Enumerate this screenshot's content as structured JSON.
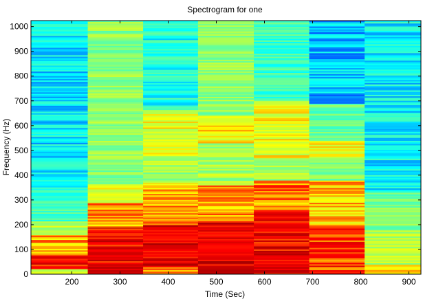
{
  "chart_data": {
    "type": "heatmap",
    "title": "Spectrogram for one",
    "xlabel": "Time (Sec)",
    "ylabel": "Frequency (Hz)",
    "xlim": [
      115,
      925
    ],
    "ylim": [
      0,
      1024
    ],
    "x_ticks": [
      200,
      300,
      400,
      500,
      600,
      700,
      800,
      900
    ],
    "y_ticks": [
      0,
      100,
      200,
      300,
      400,
      500,
      600,
      700,
      800,
      900,
      1000
    ],
    "grid": false,
    "legend": "none",
    "colormap": "jet",
    "colorscale_points": [
      "#00007f",
      "#0000ff",
      "#00ffff",
      "#80ff80",
      "#ffff00",
      "#ff0000",
      "#7f0000"
    ],
    "segments": [
      {
        "x_start": 115,
        "x_end": 233,
        "bands": [
          {
            "f_start": 0,
            "f_end": 22,
            "level": 0.62
          },
          {
            "f_start": 22,
            "f_end": 80,
            "level": 0.84
          },
          {
            "f_start": 80,
            "f_end": 160,
            "level": 0.72
          },
          {
            "f_start": 160,
            "f_end": 215,
            "level": 0.56
          },
          {
            "f_start": 215,
            "f_end": 340,
            "level": 0.42
          },
          {
            "f_start": 340,
            "f_end": 1024,
            "level": 0.34
          }
        ]
      },
      {
        "x_start": 233,
        "x_end": 348,
        "bands": [
          {
            "f_start": 0,
            "f_end": 190,
            "level": 0.85
          },
          {
            "f_start": 190,
            "f_end": 290,
            "level": 0.74
          },
          {
            "f_start": 290,
            "f_end": 360,
            "level": 0.65
          },
          {
            "f_start": 360,
            "f_end": 1024,
            "level": 0.52
          }
        ]
      },
      {
        "x_start": 348,
        "x_end": 462,
        "bands": [
          {
            "f_start": 0,
            "f_end": 30,
            "level": 0.76
          },
          {
            "f_start": 30,
            "f_end": 200,
            "level": 0.88
          },
          {
            "f_start": 200,
            "f_end": 370,
            "level": 0.73
          },
          {
            "f_start": 370,
            "f_end": 480,
            "level": 0.55
          },
          {
            "f_start": 480,
            "f_end": 665,
            "level": 0.63
          },
          {
            "f_start": 665,
            "f_end": 1024,
            "level": 0.38
          }
        ]
      },
      {
        "x_start": 462,
        "x_end": 578,
        "bands": [
          {
            "f_start": 0,
            "f_end": 210,
            "level": 0.88
          },
          {
            "f_start": 210,
            "f_end": 360,
            "level": 0.73
          },
          {
            "f_start": 360,
            "f_end": 530,
            "level": 0.55
          },
          {
            "f_start": 530,
            "f_end": 640,
            "level": 0.67
          },
          {
            "f_start": 640,
            "f_end": 1024,
            "level": 0.52
          }
        ]
      },
      {
        "x_start": 578,
        "x_end": 693,
        "bands": [
          {
            "f_start": 0,
            "f_end": 260,
            "level": 0.86
          },
          {
            "f_start": 260,
            "f_end": 380,
            "level": 0.75
          },
          {
            "f_start": 380,
            "f_end": 470,
            "level": 0.55
          },
          {
            "f_start": 470,
            "f_end": 700,
            "level": 0.64
          },
          {
            "f_start": 700,
            "f_end": 1024,
            "level": 0.41
          }
        ]
      },
      {
        "x_start": 693,
        "x_end": 808,
        "bands": [
          {
            "f_start": 0,
            "f_end": 200,
            "level": 0.8
          },
          {
            "f_start": 200,
            "f_end": 380,
            "level": 0.7
          },
          {
            "f_start": 380,
            "f_end": 470,
            "level": 0.5
          },
          {
            "f_start": 470,
            "f_end": 540,
            "level": 0.64
          },
          {
            "f_start": 540,
            "f_end": 690,
            "level": 0.47
          },
          {
            "f_start": 690,
            "f_end": 1024,
            "level": 0.3
          }
        ]
      },
      {
        "x_start": 808,
        "x_end": 925,
        "bands": [
          {
            "f_start": 0,
            "f_end": 40,
            "level": 0.66
          },
          {
            "f_start": 40,
            "f_end": 180,
            "level": 0.58
          },
          {
            "f_start": 180,
            "f_end": 330,
            "level": 0.49
          },
          {
            "f_start": 330,
            "f_end": 1024,
            "level": 0.35
          }
        ]
      }
    ]
  }
}
